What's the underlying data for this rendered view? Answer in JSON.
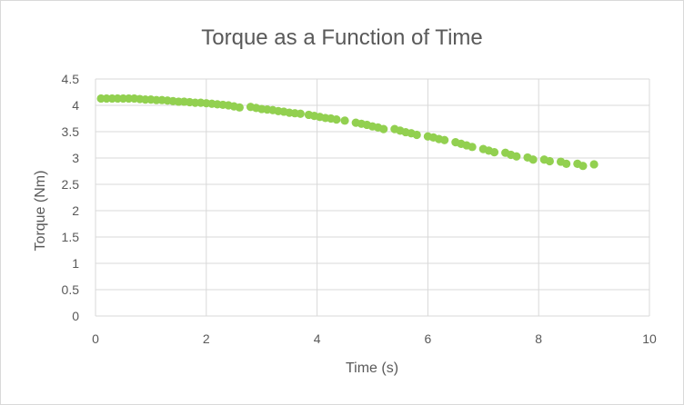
{
  "chart_data": {
    "type": "scatter",
    "title": "Torque as a Function of Time",
    "xlabel": "Time (s)",
    "ylabel": "Torque (Nm)",
    "xlim": [
      0,
      10
    ],
    "ylim": [
      0,
      4.5
    ],
    "x_ticks": [
      0,
      2,
      4,
      6,
      8,
      10
    ],
    "y_ticks": [
      0,
      0.5,
      1,
      1.5,
      2,
      2.5,
      3,
      3.5,
      4,
      4.5
    ],
    "x_tick_labels": [
      "0",
      "2",
      "4",
      "6",
      "8",
      "10"
    ],
    "y_tick_labels": [
      "0",
      "0.5",
      "1",
      "1.5",
      "2",
      "2.5",
      "3",
      "3.5",
      "4",
      "4.5"
    ],
    "grid": true,
    "legend": "none",
    "marker_color": "#92d050",
    "series": [
      {
        "x": [
          0.1,
          0.2,
          0.3,
          0.4,
          0.5,
          0.6,
          0.7,
          0.8,
          0.9,
          1.0,
          1.1,
          1.2,
          1.3,
          1.4,
          1.5,
          1.6,
          1.7,
          1.8,
          1.9,
          2.0,
          2.1,
          2.2,
          2.3,
          2.4,
          2.5,
          2.6,
          2.8,
          2.9,
          3.0,
          3.1,
          3.2,
          3.3,
          3.4,
          3.5,
          3.6,
          3.7,
          3.85,
          3.95,
          4.05,
          4.15,
          4.25,
          4.35,
          4.5,
          4.7,
          4.8,
          4.9,
          5.0,
          5.1,
          5.2,
          5.4,
          5.5,
          5.6,
          5.7,
          5.8,
          6.0,
          6.1,
          6.2,
          6.3,
          6.5,
          6.6,
          6.7,
          6.8,
          7.0,
          7.1,
          7.2,
          7.4,
          7.5,
          7.6,
          7.8,
          7.9,
          8.1,
          8.2,
          8.4,
          8.5,
          8.7,
          8.8,
          9.0
        ],
        "values": [
          4.13,
          4.13,
          4.13,
          4.13,
          4.13,
          4.13,
          4.13,
          4.12,
          4.11,
          4.11,
          4.1,
          4.1,
          4.09,
          4.08,
          4.07,
          4.07,
          4.06,
          4.05,
          4.05,
          4.04,
          4.03,
          4.02,
          4.01,
          4.0,
          3.98,
          3.96,
          3.97,
          3.95,
          3.93,
          3.92,
          3.91,
          3.89,
          3.88,
          3.86,
          3.85,
          3.84,
          3.82,
          3.8,
          3.78,
          3.76,
          3.75,
          3.73,
          3.71,
          3.67,
          3.65,
          3.63,
          3.6,
          3.58,
          3.55,
          3.55,
          3.52,
          3.49,
          3.47,
          3.44,
          3.41,
          3.39,
          3.36,
          3.34,
          3.3,
          3.27,
          3.24,
          3.21,
          3.17,
          3.14,
          3.11,
          3.1,
          3.06,
          3.03,
          3.01,
          2.97,
          2.97,
          2.94,
          2.93,
          2.89,
          2.89,
          2.85,
          2.88
        ]
      }
    ]
  }
}
